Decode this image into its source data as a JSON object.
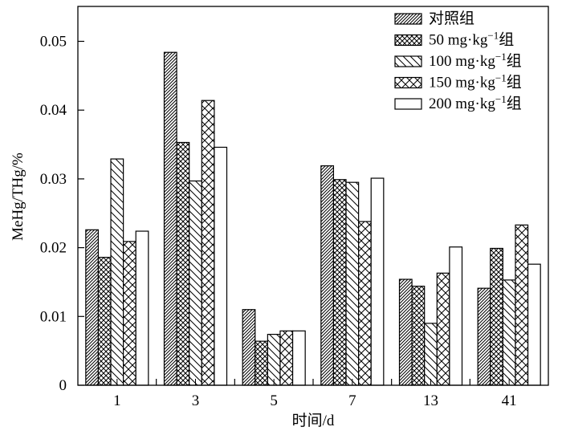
{
  "chart_data": {
    "type": "bar",
    "title": "",
    "xlabel": "时间/d",
    "ylabel": "MeHg/THg/%",
    "ylim": [
      0,
      0.055
    ],
    "yticks": [
      0,
      0.01,
      0.02,
      0.03,
      0.04,
      0.05
    ],
    "ytick_labels": [
      "0",
      "0.01",
      "0.02",
      "0.03",
      "0.04",
      "0.05"
    ],
    "categories": [
      "1",
      "3",
      "5",
      "7",
      "13",
      "41"
    ],
    "legend_position": "top-right",
    "grid": false,
    "series": [
      {
        "name": "对照组",
        "legend_label": "对照组",
        "pattern": "forward-diagonal-dense",
        "values": [
          0.0226,
          0.0484,
          0.011,
          0.0319,
          0.0154,
          0.0141
        ]
      },
      {
        "name": "50 mg·kg−1组",
        "legend_prefix": "50 mg·kg",
        "legend_sup": "−1",
        "legend_suffix": "组",
        "pattern": "crosshatch-dense",
        "values": [
          0.0186,
          0.0353,
          0.0064,
          0.0299,
          0.0144,
          0.0199
        ]
      },
      {
        "name": "100 mg·kg−1组",
        "legend_prefix": "100 mg·kg",
        "legend_sup": "−1",
        "legend_suffix": "组",
        "pattern": "back-diagonal-sparse",
        "values": [
          0.0329,
          0.0297,
          0.0074,
          0.0295,
          0.009,
          0.0153
        ]
      },
      {
        "name": "150 mg·kg−1组",
        "legend_prefix": "150 mg·kg",
        "legend_sup": "−1",
        "legend_suffix": "组",
        "pattern": "crosshatch-sparse",
        "values": [
          0.0209,
          0.0414,
          0.0079,
          0.0238,
          0.0163,
          0.0233
        ]
      },
      {
        "name": "200 mg·kg−1组",
        "legend_prefix": "200 mg·kg",
        "legend_sup": "−1",
        "legend_suffix": "组",
        "pattern": "empty",
        "values": [
          0.0224,
          0.0346,
          0.0079,
          0.0301,
          0.0201,
          0.0176
        ]
      }
    ]
  },
  "colors": {
    "stroke": "#000000",
    "background": "#ffffff"
  }
}
